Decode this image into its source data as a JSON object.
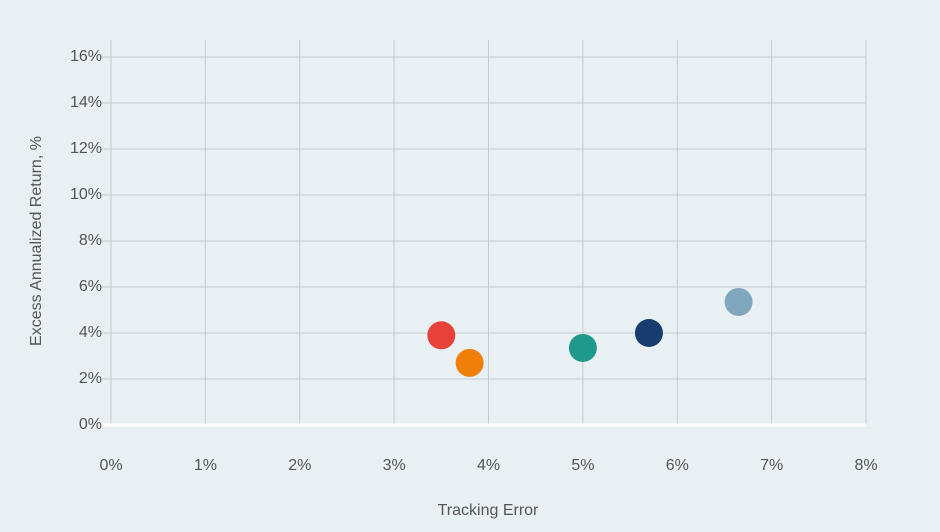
{
  "chart_data": {
    "type": "scatter",
    "xlabel": "Tracking Error",
    "ylabel": "Excess Annualized Return, %",
    "x": [
      3.5,
      3.8,
      5.0,
      5.7,
      6.65
    ],
    "y": [
      3.9,
      2.7,
      3.35,
      4.0,
      5.35
    ],
    "colors": [
      "#e8413a",
      "#f07f09",
      "#1f9a8a",
      "#173c6e",
      "#7fa7bd"
    ],
    "xlim": [
      0,
      8
    ],
    "ylim": [
      0,
      16
    ],
    "xticks": [
      {
        "value": 0,
        "label": "0%"
      },
      {
        "value": 1,
        "label": "1%"
      },
      {
        "value": 2,
        "label": "2%"
      },
      {
        "value": 3,
        "label": "3%"
      },
      {
        "value": 4,
        "label": "4%"
      },
      {
        "value": 5,
        "label": "5%"
      },
      {
        "value": 6,
        "label": "6%"
      },
      {
        "value": 7,
        "label": "7%"
      },
      {
        "value": 8,
        "label": "8%"
      }
    ],
    "yticks": [
      {
        "value": 0,
        "label": "0%"
      },
      {
        "value": 2,
        "label": "2%"
      },
      {
        "value": 4,
        "label": "4%"
      },
      {
        "value": 6,
        "label": "6%"
      },
      {
        "value": 8,
        "label": "8%"
      },
      {
        "value": 10,
        "label": "10%"
      },
      {
        "value": 12,
        "label": "12%"
      },
      {
        "value": 14,
        "label": "14%"
      },
      {
        "value": 16,
        "label": "16%"
      }
    ],
    "grid": true
  }
}
